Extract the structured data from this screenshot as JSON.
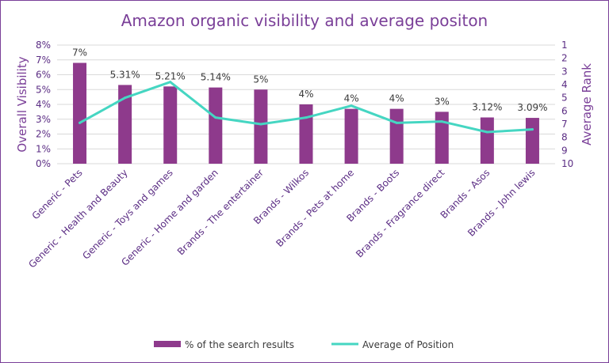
{
  "chart_data": {
    "type": "bar",
    "title": "Amazon organic visibility and average positon",
    "categories": [
      "Generic - Pets",
      "Generic - Health and Beauty",
      "Generic - Toys and games",
      "Generic - Home and garden",
      "Brands - The entertainer",
      "Brands - Wilkos",
      "Brands - Pets at home",
      "Brands - Boots",
      "Brands - Fragrance direct",
      "Brands - Asos",
      "Brands - John lewis"
    ],
    "series": [
      {
        "name": "% of the search results",
        "type": "bar",
        "axis": "left",
        "color": "#8e3a8c",
        "values": [
          6.8,
          5.31,
          5.21,
          5.14,
          5.0,
          4.0,
          3.7,
          3.7,
          3.5,
          3.12,
          3.09
        ],
        "data_labels": [
          "7%",
          "5.31%",
          "5.21%",
          "5.14%",
          "5%",
          "4%",
          "4%",
          "4%",
          "3%",
          "3.12%",
          "3.09%"
        ]
      },
      {
        "name": "Average of Position",
        "type": "line",
        "axis": "right",
        "color": "#45d6c2",
        "values": [
          6.9,
          5.0,
          3.8,
          6.5,
          7.0,
          6.5,
          5.6,
          6.9,
          6.8,
          7.6,
          7.4
        ]
      }
    ],
    "ylabel": "Overall Visibility",
    "y2label": "Average Rank",
    "ylim": [
      0,
      8
    ],
    "yticks": [
      "0%",
      "1%",
      "2%",
      "3%",
      "4%",
      "5%",
      "6%",
      "7%",
      "8%"
    ],
    "y2lim": [
      1,
      10
    ],
    "y2ticks": [
      "1",
      "2",
      "3",
      "4",
      "5",
      "6",
      "7",
      "8",
      "9",
      "10"
    ],
    "y2_reversed": true,
    "grid": true,
    "legend_position": "bottom"
  }
}
